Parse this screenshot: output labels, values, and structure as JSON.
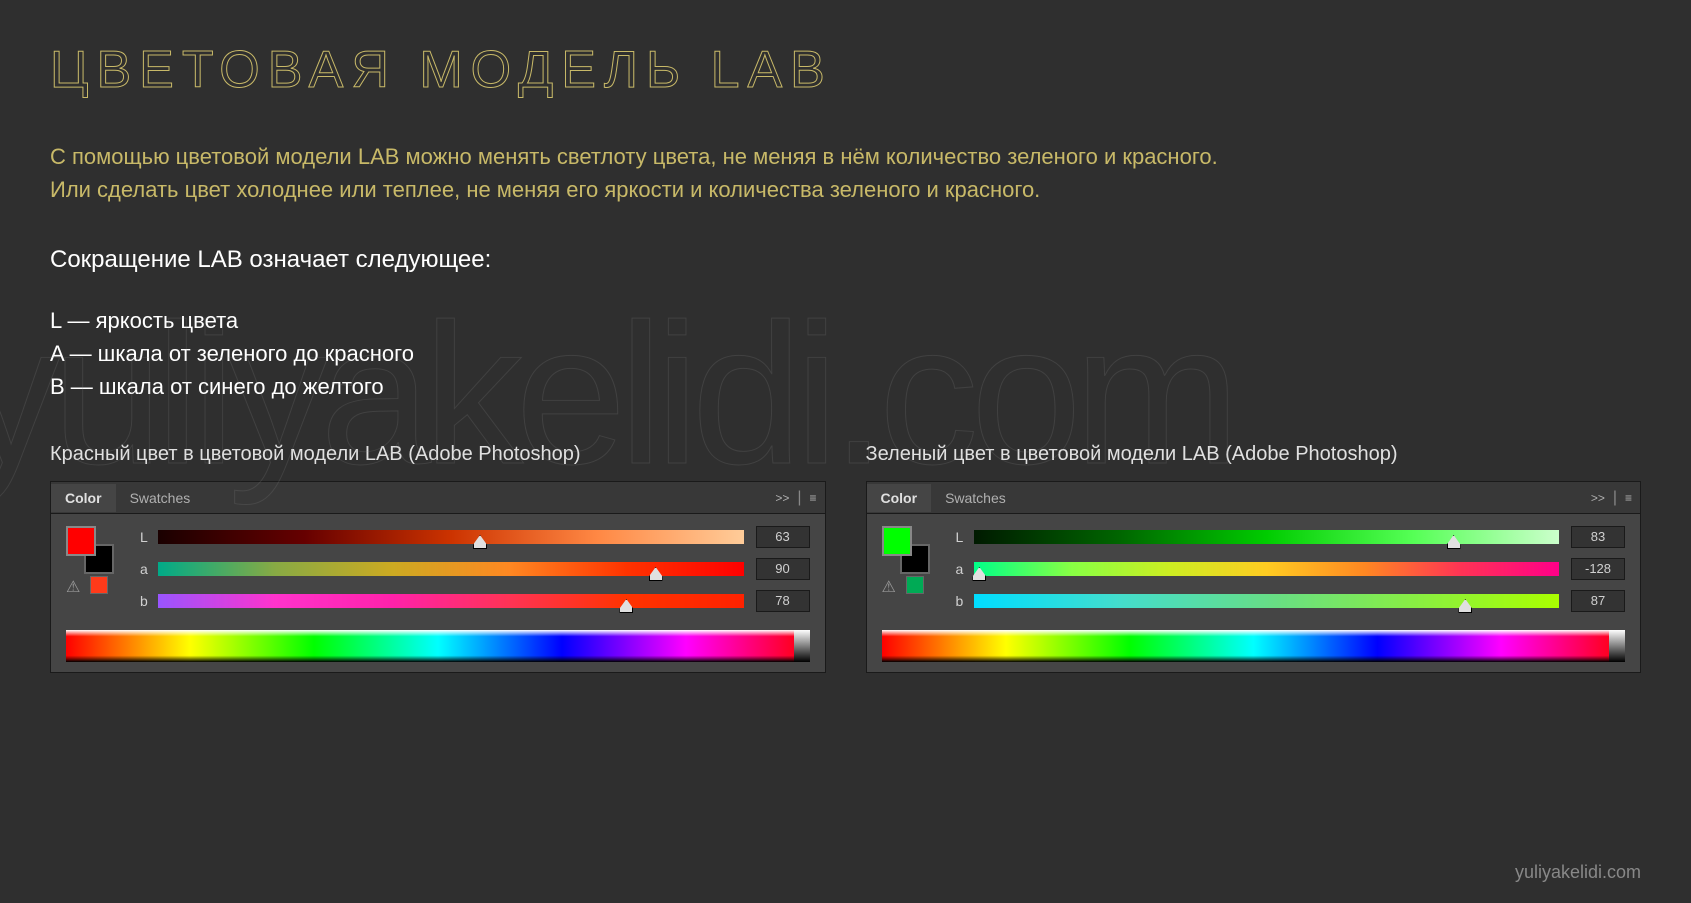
{
  "title": "ЦВЕТОВАЯ МОДЕЛЬ LAB",
  "intro_line1": "С помощью цветовой модели LAB можно менять светлоту цвета, не меняя в нём количество зеленого и красного.",
  "intro_line2": "Или сделать цвет холоднее или теплее, не меняя его яркости и количества зеленого и красного.",
  "subheading": "Сокращение LAB означает следующее:",
  "def_l": "L — яркость цвета",
  "def_a": "A — шкала от зеленого до красного",
  "def_b": "B — шкала от синего до желтого",
  "watermark": "yuliyakelidi.com",
  "credit": "yuliyakelidi.com",
  "tab_color": "Color",
  "tab_swatches": "Swatches",
  "collapse_glyph": ">>",
  "menu_glyph": "≡",
  "warn_glyph": "⚠",
  "panels": {
    "left": {
      "caption": "Красный цвет в цветовой модели LAB (Adobe Photoshop)",
      "fg_color": "#ff0000",
      "warn_swatch": "#ff3a1a",
      "sliders": {
        "L": {
          "label": "L",
          "value": "63",
          "thumb_pct": 55,
          "gradient": "linear-gradient(to right,#1a0000,#660000,#cc3300,#ff8844,#ffcc99)"
        },
        "a": {
          "label": "a",
          "value": "90",
          "thumb_pct": 85,
          "gradient": "linear-gradient(to right,#00aa88,#88aa44,#ccaa22,#ff8822,#ff3300,#ff0000)"
        },
        "b": {
          "label": "b",
          "value": "78",
          "thumb_pct": 80,
          "gradient": "linear-gradient(to right,#9955ff,#ff33cc,#ff22aa,#ff3355,#ff3300,#ff2200)"
        }
      }
    },
    "right": {
      "caption": "Зеленый цвет в цветовой модели LAB (Adobe Photoshop)",
      "fg_color": "#00ff00",
      "warn_swatch": "#00aa55",
      "sliders": {
        "L": {
          "label": "L",
          "value": "83",
          "thumb_pct": 82,
          "gradient": "linear-gradient(to right,#001a00,#006600,#00cc00,#55ff55,#ccffcc)"
        },
        "a": {
          "label": "a",
          "value": "-128",
          "thumb_pct": 1,
          "gradient": "linear-gradient(to right,#00ff88,#88ff44,#ccee22,#ffcc22,#ff8822,#ff3355,#ff0088)"
        },
        "b": {
          "label": "b",
          "value": "87",
          "thumb_pct": 84,
          "gradient": "linear-gradient(to right,#00ddff,#44ddcc,#66dd88,#88ee44,#aaff00)"
        }
      }
    }
  },
  "colors": {
    "background": "#2f2f2f",
    "accent": "#c8b968",
    "panel_bg": "#454545",
    "text": "#e0e0e0"
  }
}
